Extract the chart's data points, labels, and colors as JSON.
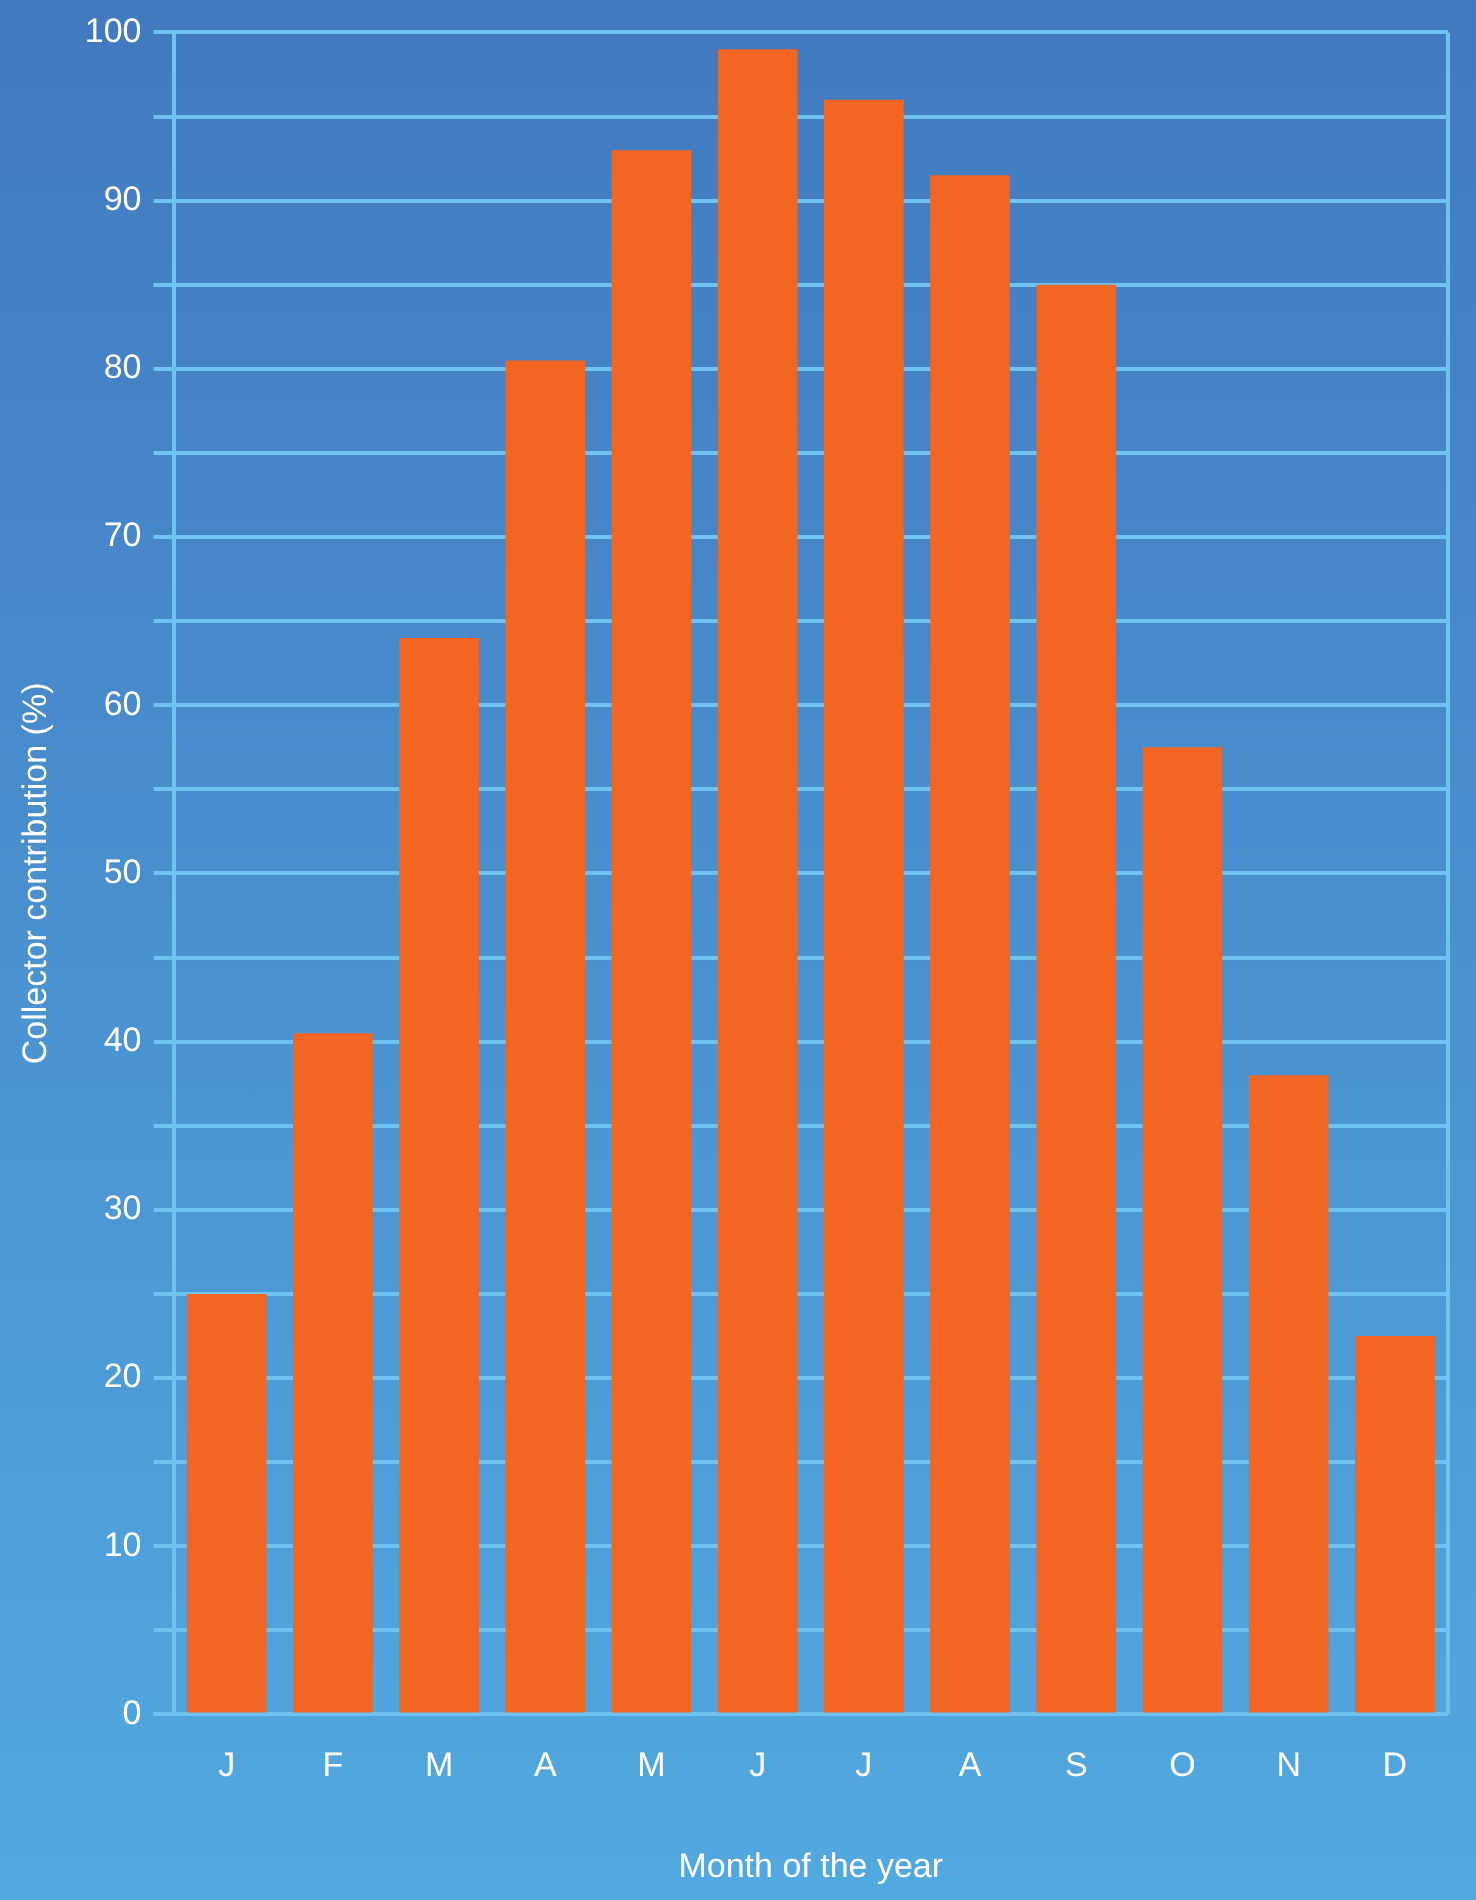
{
  "chart_data": {
    "type": "bar",
    "xlabel": "Month of the year",
    "ylabel": "Collector contribution (%)",
    "categories": [
      "J",
      "F",
      "M",
      "A",
      "M",
      "J",
      "J",
      "A",
      "S",
      "O",
      "N",
      "D"
    ],
    "values": [
      25,
      40.5,
      64,
      80.5,
      93,
      99,
      96,
      91.5,
      85,
      57.5,
      38,
      22.5
    ],
    "color": "#f26522",
    "ylim": [
      0,
      100
    ],
    "yticks": [
      0,
      {
        "value": 5,
        "label": null
      },
      10,
      {
        "value": 15,
        "label": null
      },
      20,
      {
        "value": 25,
        "label": null
      },
      30,
      {
        "value": 35,
        "label": null
      },
      40,
      {
        "value": 45,
        "label": null
      },
      50,
      {
        "value": 55,
        "label": null
      },
      60,
      {
        "value": 65,
        "label": null
      },
      70,
      {
        "value": 75,
        "label": null
      },
      80,
      {
        "value": 85,
        "label": null
      },
      90,
      {
        "value": 95,
        "label": null
      },
      100
    ],
    "grid": "y",
    "legend": false
  }
}
